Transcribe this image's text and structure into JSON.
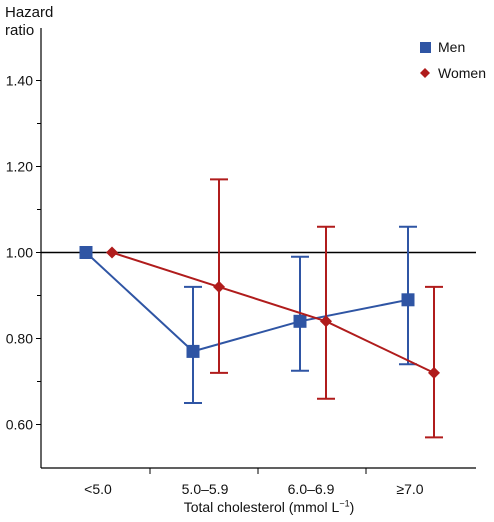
{
  "chart_data": {
    "type": "line",
    "ylabel_lines": [
      "Hazard",
      "ratio"
    ],
    "xlabel": "Total cholesterol (mmol L",
    "xlabel_sup": "−1",
    "xlabel_close": ")",
    "categories": [
      "<5.0",
      "5.0–5.9",
      "6.0–6.9",
      "≥7.0"
    ],
    "yticks": [
      "1.40",
      "1.20",
      "1.00",
      "0.80",
      "0.60"
    ],
    "ytick_values": [
      1.4,
      1.2,
      1.0,
      0.8,
      0.6
    ],
    "ylim": [
      0.53,
      1.5
    ],
    "reference_line": 1.0,
    "legend_position": "top-right",
    "series": [
      {
        "name": "Men",
        "marker": "square",
        "color": "#2f55a4",
        "values": [
          1.0,
          0.77,
          0.84,
          0.89
        ],
        "ci_low": [
          null,
          0.65,
          0.725,
          0.74
        ],
        "ci_high": [
          null,
          0.92,
          0.99,
          1.06
        ]
      },
      {
        "name": "Women",
        "marker": "diamond",
        "color": "#b01c1c",
        "values": [
          1.0,
          0.92,
          0.84,
          0.72
        ],
        "ci_low": [
          null,
          0.72,
          0.66,
          0.57
        ],
        "ci_high": [
          null,
          1.17,
          1.06,
          0.92
        ]
      }
    ]
  }
}
